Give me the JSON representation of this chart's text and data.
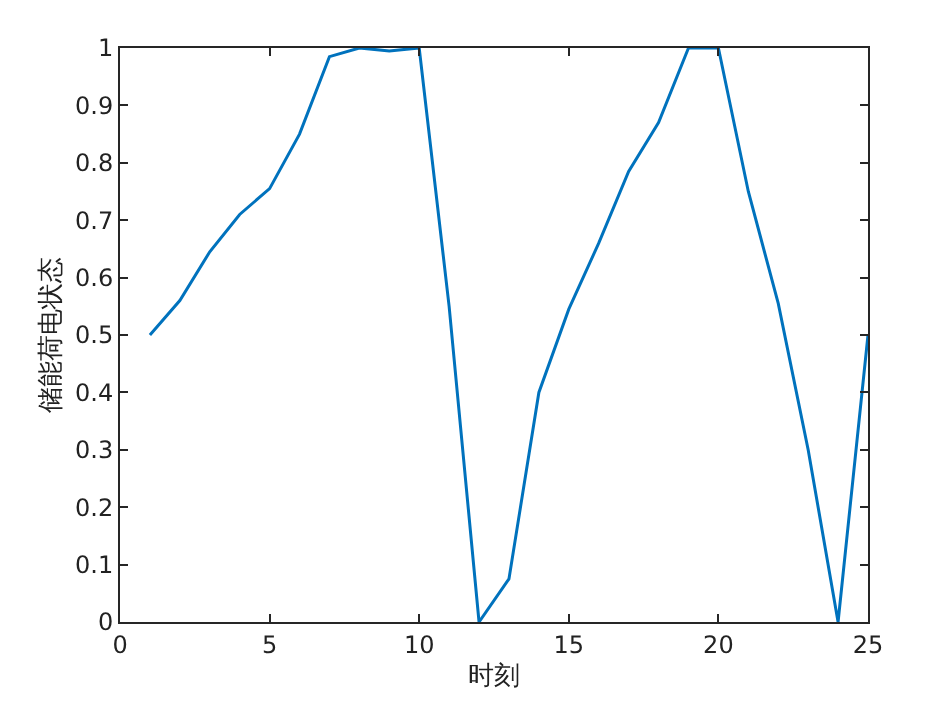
{
  "chart_data": {
    "type": "line",
    "xlabel": "时刻",
    "ylabel": "储能荷电状态",
    "x": [
      1,
      2,
      3,
      4,
      5,
      6,
      7,
      8,
      9,
      10,
      11,
      12,
      13,
      14,
      15,
      16,
      17,
      18,
      19,
      20,
      21,
      22,
      23,
      24,
      25
    ],
    "series": [
      {
        "color": "#0072bd",
        "values": [
          0.5,
          0.56,
          0.645,
          0.71,
          0.755,
          0.85,
          0.985,
          1.0,
          0.995,
          1.0,
          0.55,
          0,
          0.075,
          0.4,
          0.545,
          0.66,
          0.785,
          0.87,
          1.0,
          1.0,
          0.75,
          0.555,
          0.3,
          0,
          0.5
        ]
      }
    ],
    "xlim": [
      0,
      25
    ],
    "xticks": [
      0,
      5,
      10,
      15,
      20,
      25
    ],
    "ylim": [
      0,
      1
    ],
    "yticks": [
      0,
      0.1,
      0.2,
      0.3,
      0.4,
      0.5,
      0.6,
      0.7,
      0.8,
      0.9,
      1
    ],
    "marker": "none",
    "line_style": "solid"
  }
}
